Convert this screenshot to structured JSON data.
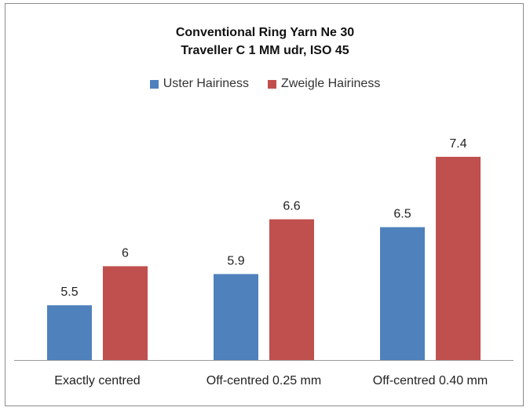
{
  "chart_data": {
    "type": "bar",
    "title": "Conventional Ring Yarn Ne 30",
    "subtitle": "Traveller C 1 MM udr, ISO 45",
    "categories": [
      "Exactly centred",
      "Off-centred 0.25 mm",
      "Off-centred 0.40 mm"
    ],
    "series": [
      {
        "name": "Uster Hairiness",
        "values": [
          5.5,
          5.9,
          6.5
        ],
        "labels": [
          "5.5",
          "5.9",
          "6.5"
        ],
        "color": "#4f81bd"
      },
      {
        "name": "Zweigle Hairiness",
        "values": [
          6,
          6.6,
          7.4
        ],
        "labels": [
          "6",
          "6.6",
          "7.4"
        ],
        "color": "#c0504d"
      }
    ],
    "xlabel": "",
    "ylabel": "",
    "ylim": [
      4.8,
      7.8
    ],
    "grid": false,
    "legend": "top-center"
  }
}
